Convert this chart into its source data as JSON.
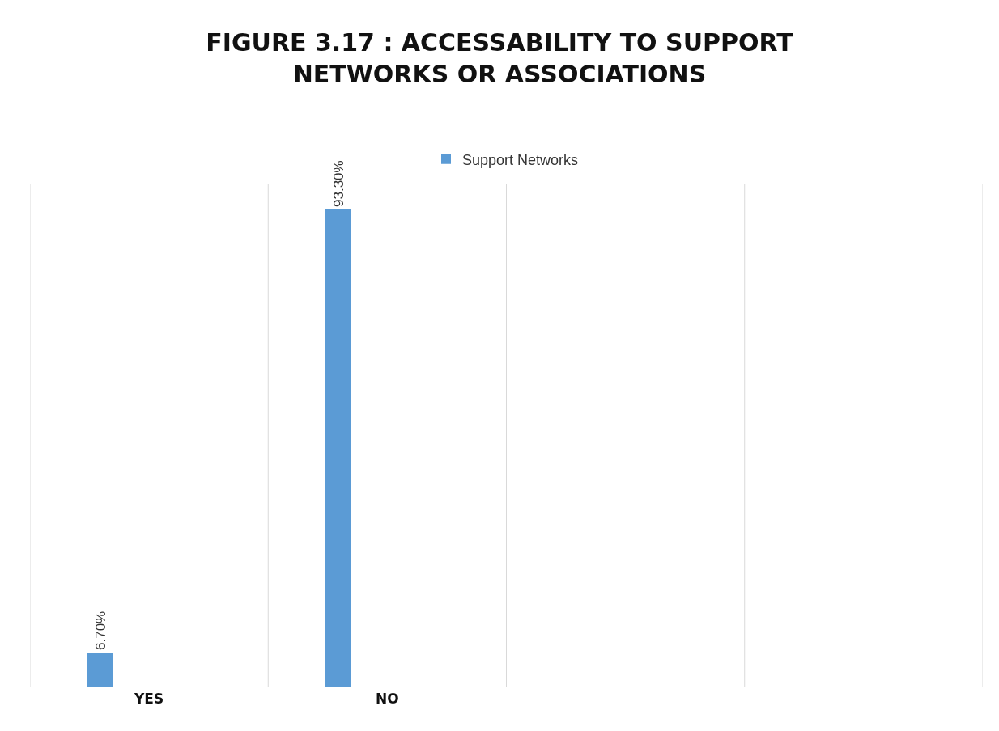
{
  "chart_data": {
    "type": "bar",
    "title": "FIGURE 3.17 : ACCESSABILITY TO SUPPORT NETWORKS OR ASSOCIATIONS",
    "categories": [
      "YES",
      "NO",
      null,
      null
    ],
    "series": [
      {
        "name": "Support Networks",
        "color": "#5b9bd5",
        "values": [
          6.7,
          93.3,
          null,
          null
        ],
        "value_labels": [
          "6.70%",
          "93.30%",
          null,
          null
        ]
      }
    ],
    "legend": "top",
    "grid": "x"
  }
}
